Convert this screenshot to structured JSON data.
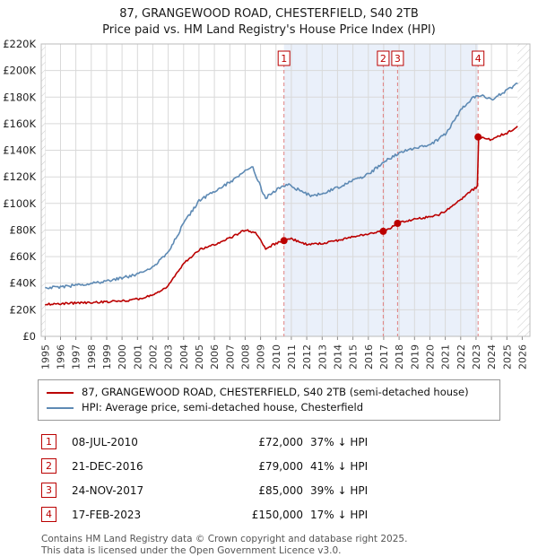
{
  "title": {
    "line1": "87, GRANGEWOOD ROAD, CHESTERFIELD, S40 2TB",
    "line2": "Price paid vs. HM Land Registry's House Price Index (HPI)"
  },
  "chart_data": {
    "type": "line",
    "title": "Price paid vs. HM Land Registry's House Price Index (HPI)",
    "xlabel": "",
    "ylabel": "",
    "xlim": [
      1994.75,
      2026.5
    ],
    "ylim": [
      0,
      220000
    ],
    "ytick_step": 20000,
    "ytick_labels": [
      "£0",
      "£20K",
      "£40K",
      "£60K",
      "£80K",
      "£100K",
      "£120K",
      "£140K",
      "£160K",
      "£180K",
      "£200K",
      "£220K"
    ],
    "xtick_labels": [
      "1995",
      "1996",
      "1997",
      "1998",
      "1999",
      "2000",
      "2001",
      "2002",
      "2003",
      "2004",
      "2005",
      "2006",
      "2007",
      "2008",
      "2009",
      "2010",
      "2011",
      "2012",
      "2013",
      "2014",
      "2015",
      "2016",
      "2017",
      "2018",
      "2019",
      "2020",
      "2021",
      "2022",
      "2023",
      "2024",
      "2025",
      "2026"
    ],
    "grid": true,
    "legend_position": "bottom",
    "colors": {
      "property": "#bb0000",
      "hpi": "#5e8ab4",
      "shade": "#eaf0fa",
      "dashed": "#e08080",
      "grid": "#d9d9d9",
      "hatch": "#c8c8c8"
    },
    "series": [
      {
        "name": "87, GRANGEWOOD ROAD, CHESTERFIELD, S40 2TB (semi-detached house)",
        "color": "#bb0000",
        "noise": 1600,
        "points": [
          [
            1995,
            24000
          ],
          [
            1996,
            24500
          ],
          [
            1997,
            25000
          ],
          [
            1998,
            25500
          ],
          [
            1999,
            26000
          ],
          [
            2000,
            26500
          ],
          [
            2001,
            28000
          ],
          [
            2002,
            31000
          ],
          [
            2003,
            38000
          ],
          [
            2004,
            55000
          ],
          [
            2005,
            65000
          ],
          [
            2006,
            69000
          ],
          [
            2007,
            74000
          ],
          [
            2008,
            80000
          ],
          [
            2008.7,
            78000
          ],
          [
            2009.3,
            66000
          ],
          [
            2010,
            70000
          ],
          [
            2010.52,
            72000
          ],
          [
            2011,
            73500
          ],
          [
            2012,
            69000
          ],
          [
            2013,
            70000
          ],
          [
            2014,
            72000
          ],
          [
            2015,
            75000
          ],
          [
            2016,
            77000
          ],
          [
            2016.97,
            79000
          ],
          [
            2017.5,
            82000
          ],
          [
            2017.9,
            85000
          ],
          [
            2018.5,
            87000
          ],
          [
            2019.5,
            89000
          ],
          [
            2020.5,
            91000
          ],
          [
            2021.5,
            98000
          ],
          [
            2022.5,
            108000
          ],
          [
            2023.12,
            113000
          ],
          [
            2023.13,
            150000
          ],
          [
            2023.5,
            149000
          ],
          [
            2024,
            148000
          ],
          [
            2024.5,
            151000
          ],
          [
            2025,
            153000
          ],
          [
            2025.7,
            158000
          ]
        ]
      },
      {
        "name": "HPI: Average price, semi-detached house, Chesterfield",
        "color": "#5e8ab4",
        "noise": 2200,
        "points": [
          [
            1995,
            37000
          ],
          [
            1996,
            37000
          ],
          [
            1997,
            38500
          ],
          [
            1998,
            40000
          ],
          [
            1999,
            41500
          ],
          [
            2000,
            44000
          ],
          [
            2001,
            46500
          ],
          [
            2002,
            52000
          ],
          [
            2003,
            63000
          ],
          [
            2004,
            85000
          ],
          [
            2005,
            102000
          ],
          [
            2006,
            109000
          ],
          [
            2007,
            116000
          ],
          [
            2008,
            124000
          ],
          [
            2008.5,
            127000
          ],
          [
            2009.3,
            104000
          ],
          [
            2010,
            110000
          ],
          [
            2010.8,
            114000
          ],
          [
            2011.5,
            110000
          ],
          [
            2012.2,
            106000
          ],
          [
            2013,
            107000
          ],
          [
            2014,
            112000
          ],
          [
            2015,
            117000
          ],
          [
            2016,
            122000
          ],
          [
            2017,
            131000
          ],
          [
            2018,
            138000
          ],
          [
            2019,
            142000
          ],
          [
            2020,
            144000
          ],
          [
            2021,
            152000
          ],
          [
            2022,
            170000
          ],
          [
            2022.8,
            180000
          ],
          [
            2023.5,
            181000
          ],
          [
            2024,
            178000
          ],
          [
            2024.5,
            182000
          ],
          [
            2025,
            185000
          ],
          [
            2025.7,
            190000
          ]
        ]
      }
    ],
    "sales": [
      {
        "n": "1",
        "x": 2010.52,
        "price": 72000
      },
      {
        "n": "2",
        "x": 2016.97,
        "price": 79000
      },
      {
        "n": "3",
        "x": 2017.9,
        "price": 85000
      },
      {
        "n": "4",
        "x": 2023.13,
        "price": 150000
      }
    ],
    "shaded_region": [
      2010.52,
      2023.13
    ],
    "hatch_regions": [
      [
        1994.75,
        1995.0
      ],
      [
        2025.7,
        2026.5
      ]
    ]
  },
  "legend": {
    "items": [
      {
        "label": "87, GRANGEWOOD ROAD, CHESTERFIELD, S40 2TB (semi-detached house)",
        "color": "#bb0000"
      },
      {
        "label": "HPI: Average price, semi-detached house, Chesterfield",
        "color": "#5e8ab4"
      }
    ]
  },
  "transactions": [
    {
      "num": "1",
      "date": "08-JUL-2010",
      "price": "£72,000",
      "vs_hpi": "37% ↓ HPI"
    },
    {
      "num": "2",
      "date": "21-DEC-2016",
      "price": "£79,000",
      "vs_hpi": "41% ↓ HPI"
    },
    {
      "num": "3",
      "date": "24-NOV-2017",
      "price": "£85,000",
      "vs_hpi": "39% ↓ HPI"
    },
    {
      "num": "4",
      "date": "17-FEB-2023",
      "price": "£150,000",
      "vs_hpi": "17% ↓ HPI"
    }
  ],
  "footer": {
    "line1": "Contains HM Land Registry data © Crown copyright and database right 2025.",
    "line2": "This data is licensed under the Open Government Licence v3.0."
  }
}
